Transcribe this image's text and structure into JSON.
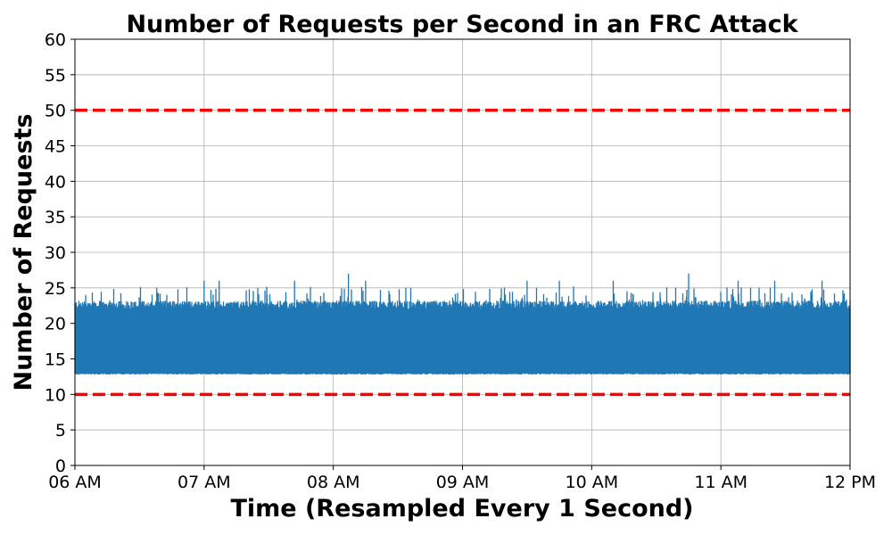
{
  "chart_data": {
    "type": "line",
    "title": "Number of Requests per Second in an FRC Attack",
    "xlabel": "Time (Resampled Every 1 Second)",
    "ylabel": "Number of Requests",
    "x_tick_labels": [
      "06 AM",
      "07 AM",
      "08 AM",
      "09 AM",
      "10 AM",
      "11 AM",
      "12 PM"
    ],
    "y_tick_labels": [
      "0",
      "5",
      "10",
      "15",
      "20",
      "25",
      "30",
      "35",
      "40",
      "45",
      "50",
      "55",
      "60"
    ],
    "xlim": [
      "06:00",
      "12:00"
    ],
    "ylim": [
      0,
      60
    ],
    "grid": true,
    "series": [
      {
        "color": "#1f77b4",
        "sampling": "every 1 second",
        "typical_low": 13,
        "typical_high": 23,
        "peaks": [
          {
            "x": "06:05",
            "y": 24
          },
          {
            "x": "06:38",
            "y": 25
          },
          {
            "x": "07:00",
            "y": 26
          },
          {
            "x": "07:07",
            "y": 26
          },
          {
            "x": "07:42",
            "y": 26
          },
          {
            "x": "08:07",
            "y": 27
          },
          {
            "x": "08:15",
            "y": 26
          },
          {
            "x": "09:30",
            "y": 26
          },
          {
            "x": "09:45",
            "y": 26
          },
          {
            "x": "10:10",
            "y": 26
          },
          {
            "x": "10:45",
            "y": 27
          },
          {
            "x": "11:08",
            "y": 26
          },
          {
            "x": "11:25",
            "y": 26
          },
          {
            "x": "11:47",
            "y": 26
          }
        ]
      }
    ],
    "reference_lines": [
      {
        "y": 50,
        "color": "#ff0000",
        "style": "dashed"
      },
      {
        "y": 10,
        "color": "#ff0000",
        "style": "dashed"
      }
    ]
  }
}
